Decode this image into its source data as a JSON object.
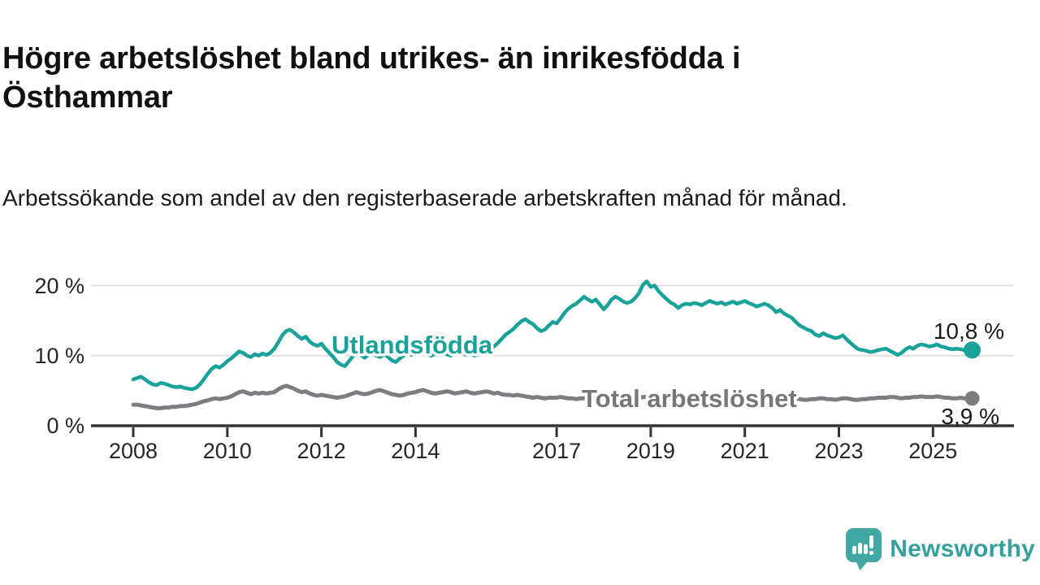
{
  "header": {
    "title": "Högre arbetslöshet bland utrikes- än inrikesfödda i Östhammar",
    "subtitle": "Arbetssökande som andel av den registerbaserade arbetskraften månad för månad."
  },
  "chart_data": {
    "type": "line",
    "unit": "%",
    "grid": "horizontal-only",
    "legend_position": "inline-labels-on-lines",
    "x_start_year": 2008,
    "x_points_per_year": 12,
    "x_ticks": [
      2008,
      2010,
      2012,
      2014,
      2017,
      2019,
      2021,
      2023,
      2025
    ],
    "y_ticks": [
      {
        "value": 0,
        "label": "0 %"
      },
      {
        "value": 10,
        "label": "10 %"
      },
      {
        "value": 20,
        "label": "20 %"
      }
    ],
    "ylim": [
      0,
      22
    ],
    "series": [
      {
        "name": "Utlandsfödda",
        "color": "#18a29a",
        "end_label": "10,8 %",
        "end_value": 10.8,
        "values": [
          6.6,
          6.8,
          7.0,
          6.6,
          6.2,
          5.9,
          5.8,
          6.1,
          6.0,
          5.8,
          5.6,
          5.5,
          5.6,
          5.4,
          5.3,
          5.2,
          5.4,
          5.9,
          6.6,
          7.4,
          8.1,
          8.5,
          8.3,
          8.7,
          9.2,
          9.6,
          10.1,
          10.6,
          10.4,
          10.0,
          9.8,
          10.2,
          10.0,
          10.3,
          10.1,
          10.4,
          11.0,
          11.9,
          12.9,
          13.5,
          13.7,
          13.3,
          12.8,
          12.4,
          12.7,
          12.0,
          11.6,
          11.4,
          11.7,
          11.0,
          10.4,
          9.8,
          9.1,
          8.7,
          8.5,
          9.2,
          9.9,
          10.3,
          10.1,
          9.7,
          10.1,
          10.4,
          10.0,
          9.8,
          10.2,
          9.8,
          9.3,
          9.1,
          9.6,
          10.0,
          10.3,
          10.1,
          10.4,
          10.2,
          10.5,
          10.2,
          10.0,
          10.3,
          10.1,
          10.4,
          10.2,
          10.0,
          10.2,
          10.4,
          10.3,
          10.1,
          10.3,
          10.0,
          10.2,
          10.4,
          10.6,
          10.9,
          11.3,
          11.8,
          12.4,
          13.0,
          13.4,
          13.8,
          14.4,
          14.9,
          15.2,
          14.8,
          14.5,
          13.9,
          13.5,
          13.7,
          14.3,
          14.8,
          14.6,
          15.3,
          16.1,
          16.7,
          17.1,
          17.4,
          17.9,
          18.4,
          18.0,
          17.7,
          18.0,
          17.3,
          16.6,
          17.2,
          18.0,
          18.4,
          18.1,
          17.7,
          17.5,
          17.7,
          18.2,
          18.9,
          20.1,
          20.6,
          19.8,
          20.0,
          19.2,
          18.6,
          18.1,
          17.6,
          17.3,
          16.8,
          17.2,
          17.4,
          17.3,
          17.5,
          17.4,
          17.2,
          17.5,
          17.8,
          17.6,
          17.4,
          17.6,
          17.3,
          17.5,
          17.7,
          17.4,
          17.6,
          17.8,
          17.5,
          17.3,
          17.0,
          17.2,
          17.4,
          17.2,
          16.8,
          16.2,
          16.5,
          16.0,
          15.7,
          15.4,
          14.8,
          14.3,
          14.0,
          13.7,
          13.5,
          13.0,
          12.8,
          13.2,
          12.9,
          12.7,
          12.5,
          12.6,
          12.9,
          12.3,
          11.8,
          11.3,
          10.9,
          10.8,
          10.7,
          10.5,
          10.6,
          10.8,
          10.9,
          11.0,
          10.7,
          10.4,
          10.1,
          10.4,
          10.9,
          11.2,
          11.0,
          11.4,
          11.6,
          11.5,
          11.3,
          11.4,
          11.6,
          11.3,
          11.2,
          11.0,
          10.9,
          11.0,
          10.9,
          10.8,
          10.9,
          10.8
        ]
      },
      {
        "name": "Total arbetslöshet",
        "color": "#7d7d81",
        "end_label": "3,9 %",
        "end_value": 3.9,
        "values": [
          3.0,
          3.0,
          2.9,
          2.8,
          2.7,
          2.6,
          2.5,
          2.5,
          2.6,
          2.6,
          2.7,
          2.7,
          2.8,
          2.8,
          2.9,
          3.0,
          3.1,
          3.3,
          3.5,
          3.6,
          3.8,
          3.9,
          3.8,
          3.9,
          4.0,
          4.2,
          4.5,
          4.8,
          4.9,
          4.7,
          4.5,
          4.7,
          4.6,
          4.7,
          4.6,
          4.7,
          4.8,
          5.2,
          5.5,
          5.7,
          5.5,
          5.3,
          5.0,
          4.8,
          4.9,
          4.6,
          4.4,
          4.3,
          4.4,
          4.3,
          4.2,
          4.1,
          4.0,
          4.1,
          4.2,
          4.4,
          4.6,
          4.8,
          4.6,
          4.5,
          4.6,
          4.8,
          5.0,
          5.1,
          4.9,
          4.7,
          4.5,
          4.4,
          4.3,
          4.4,
          4.6,
          4.7,
          4.8,
          5.0,
          5.1,
          4.9,
          4.7,
          4.6,
          4.7,
          4.8,
          4.9,
          4.8,
          4.6,
          4.7,
          4.8,
          4.9,
          4.7,
          4.6,
          4.7,
          4.8,
          4.9,
          4.8,
          4.6,
          4.7,
          4.5,
          4.4,
          4.4,
          4.3,
          4.4,
          4.3,
          4.2,
          4.1,
          4.0,
          4.1,
          4.0,
          3.9,
          4.0,
          4.0,
          4.0,
          4.1,
          4.0,
          3.9,
          3.9,
          3.8,
          3.9,
          3.9,
          4.0,
          3.9,
          3.9,
          3.9,
          3.9,
          4.0,
          4.0,
          3.9,
          3.8,
          3.8,
          3.9,
          3.9,
          4.0,
          4.0,
          4.1,
          4.1,
          4.0,
          4.0,
          3.9,
          3.9,
          3.8,
          3.9,
          3.9,
          4.0,
          3.9,
          3.9,
          4.0,
          4.0,
          4.1,
          4.1,
          4.3,
          4.5,
          4.5,
          4.4,
          4.4,
          4.3,
          4.3,
          4.2,
          4.2,
          4.1,
          4.2,
          4.2,
          4.1,
          4.1,
          4.0,
          4.0,
          3.9,
          3.9,
          3.8,
          3.9,
          3.8,
          3.8,
          3.8,
          3.9,
          3.8,
          3.7,
          3.7,
          3.8,
          3.8,
          3.9,
          3.9,
          3.8,
          3.8,
          3.7,
          3.8,
          3.9,
          3.9,
          3.8,
          3.7,
          3.7,
          3.8,
          3.8,
          3.9,
          3.9,
          4.0,
          4.0,
          4.0,
          4.1,
          4.1,
          4.0,
          3.9,
          4.0,
          4.0,
          4.1,
          4.1,
          4.2,
          4.1,
          4.1,
          4.1,
          4.2,
          4.1,
          4.0,
          4.0,
          3.9,
          3.9,
          4.0,
          3.9,
          3.9,
          3.9
        ]
      }
    ]
  },
  "branding": {
    "name": "Newsworthy",
    "bubble_color": "#41a7a3",
    "text_color": "#35a09c"
  }
}
